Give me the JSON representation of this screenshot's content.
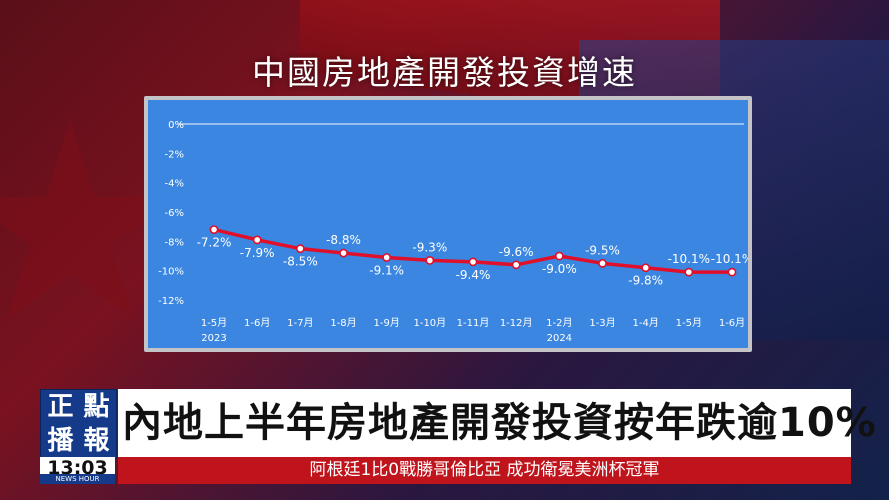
{
  "title": "中國房地產開發投資增速",
  "chart_data": {
    "type": "line",
    "categories": [
      "1-5月\n2023",
      "1-6月",
      "1-7月",
      "1-8月",
      "1-9月",
      "1-10月",
      "1-11月",
      "1-12月",
      "1-2月\n2024",
      "1-3月",
      "1-4月",
      "1-5月",
      "1-6月"
    ],
    "category_labels": [
      "1-5月",
      "1-6月",
      "1-7月",
      "1-8月",
      "1-9月",
      "1-10月",
      "1-11月",
      "1-12月",
      "1-2月",
      "1-3月",
      "1-4月",
      "1-5月",
      "1-6月"
    ],
    "year_labels": [
      {
        "index": 0,
        "text": "2023"
      },
      {
        "index": 8,
        "text": "2024"
      }
    ],
    "values": [
      -7.2,
      -7.9,
      -8.5,
      -8.8,
      -9.1,
      -9.3,
      -9.4,
      -9.6,
      -9.0,
      -9.5,
      -9.8,
      -10.1,
      -10.1
    ],
    "value_labels": [
      "-7.2%",
      "-7.9%",
      "-8.5%",
      "-8.8%",
      "-9.1%",
      "-9.3%",
      "-9.4%",
      "-9.6%",
      "-9.0%",
      "-9.5%",
      "-9.8%",
      "-10.1%",
      "-10.1%"
    ],
    "label_position": [
      "below",
      "below",
      "below",
      "above",
      "below",
      "above",
      "below",
      "above",
      "below",
      "above",
      "below",
      "above",
      "above"
    ],
    "y_ticks": [
      "0%",
      "-2%",
      "-4%",
      "-6%",
      "-8%",
      "-10%",
      "-12%"
    ],
    "ylim": [
      -12,
      0
    ],
    "grid": false,
    "colors": {
      "line": "#e0102a",
      "background": "#3a86e0",
      "marker": "#ffffff"
    }
  },
  "lower_third": {
    "logo_chars": [
      "正",
      "點",
      "播",
      "報"
    ],
    "logo_sub": "NEWS HOUR",
    "headline": "內地上半年房地產開發投資按年跌逾10%",
    "clock": "13:03",
    "ticker": "阿根廷1比0戰勝哥倫比亞  成功衛冕美洲杯冠軍"
  }
}
